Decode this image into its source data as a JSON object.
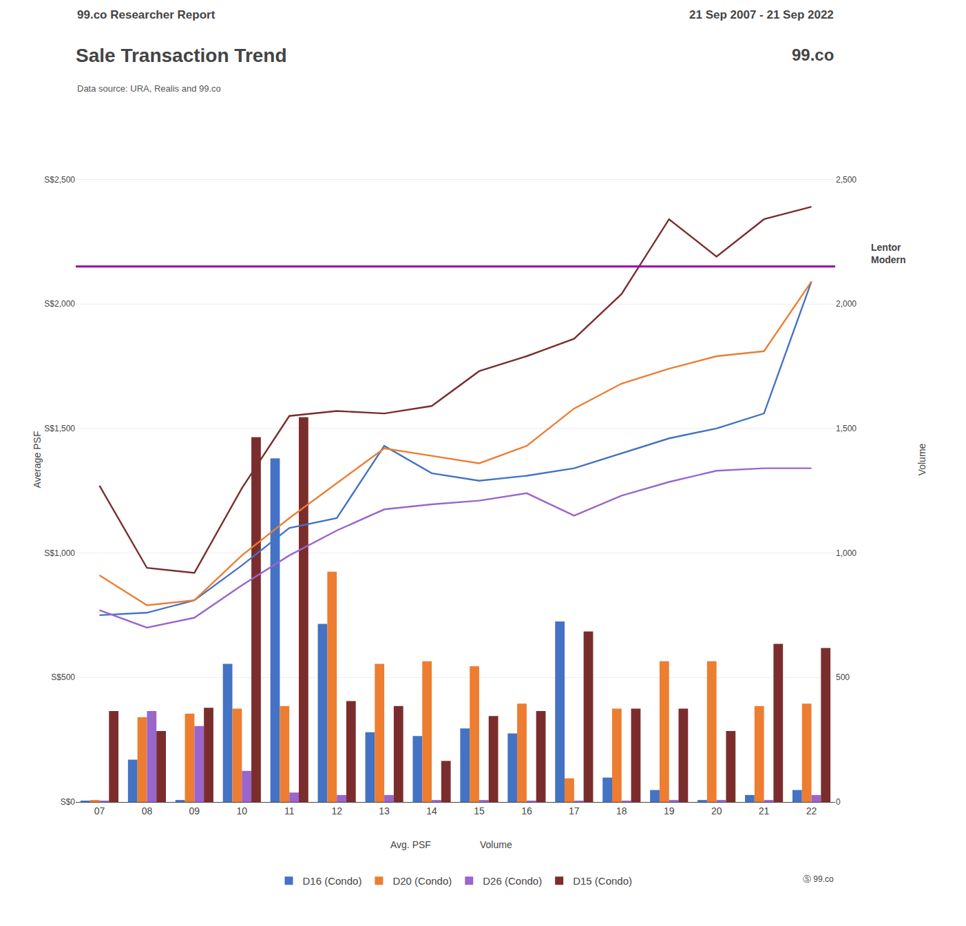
{
  "chart_data": {
    "type": "bar",
    "title": "Sale Transaction Trend",
    "subtitle": "Data source: URA, Realis and 99.co",
    "ylabel": "Average PSF",
    "y2label": "Volume",
    "categories": [
      "07",
      "08",
      "09",
      "10",
      "11",
      "12",
      "13",
      "14",
      "15",
      "16",
      "17",
      "18",
      "19",
      "20",
      "21",
      "22"
    ],
    "series": [
      {
        "name": "D16 (Condo)",
        "type": "bar",
        "axis": "y2",
        "color": "#4472C4",
        "values": [
          3,
          170,
          8,
          555,
          1380,
          715,
          280,
          265,
          295,
          275,
          725,
          98,
          48,
          8,
          28,
          48
        ]
      },
      {
        "name": "D20 (Condo)",
        "type": "bar",
        "axis": "y2",
        "color": "#ED7D31",
        "values": [
          8,
          340,
          355,
          375,
          385,
          925,
          555,
          565,
          545,
          395,
          95,
          375,
          565,
          565,
          385,
          395
        ]
      },
      {
        "name": "D26 (Condo)",
        "type": "bar",
        "axis": "y2",
        "color": "#9966CC",
        "values": [
          3,
          365,
          305,
          125,
          38,
          28,
          28,
          8,
          8,
          3,
          3,
          3,
          8,
          8,
          8,
          28
        ]
      },
      {
        "name": "D15 (Condo)",
        "type": "bar",
        "axis": "y2",
        "color": "#7B2D2D",
        "values": [
          365,
          285,
          378,
          1465,
          1545,
          405,
          385,
          165,
          345,
          365,
          685,
          375,
          375,
          285,
          635,
          618
        ]
      },
      {
        "name": "D16 (Condo)",
        "type": "line",
        "color": "#4472C4",
        "values": [
          750,
          760,
          810,
          950,
          1100,
          1140,
          1430,
          1320,
          1290,
          1310,
          1340,
          1400,
          1460,
          1500,
          1560,
          2090
        ]
      },
      {
        "name": "D20 (Condo)",
        "type": "line",
        "color": "#ED7D31",
        "values": [
          910,
          790,
          810,
          990,
          1140,
          1280,
          1420,
          1390,
          1360,
          1430,
          1580,
          1680,
          1740,
          1790,
          1810,
          2090
        ]
      },
      {
        "name": "D26 (Condo)",
        "type": "line",
        "color": "#9966CC",
        "values": [
          770,
          700,
          740,
          870,
          990,
          1090,
          1175,
          1195,
          1210,
          1240,
          1150,
          1230,
          1285,
          1330,
          1340,
          1340
        ]
      },
      {
        "name": "D15 (Condo)",
        "type": "line",
        "color": "#7B2D2D",
        "values": [
          1270,
          940,
          920,
          1260,
          1550,
          1570,
          1560,
          1590,
          1730,
          1790,
          1860,
          2040,
          2340,
          2190,
          2340,
          2390
        ]
      }
    ],
    "hlines": [
      {
        "y": 2150,
        "label": "Lentor\nModern",
        "color": "#9900AA"
      }
    ],
    "annotations": [
      "99.co Researcher Report",
      "21 Sep 2007 - 21 Sep 2022",
      "99.co",
      "Ⓢ 99.co",
      "Avg. PSF",
      "Volume"
    ],
    "ylim": [
      0,
      2750
    ],
    "yticks": [
      {
        "value": 0,
        "label": "S$0"
      },
      {
        "value": 500,
        "label": "S$500"
      },
      {
        "value": 1000,
        "label": "S$1,000"
      },
      {
        "value": 1500,
        "label": "S$1,500"
      },
      {
        "value": 2000,
        "label": "S$2,000"
      },
      {
        "value": 2500,
        "label": "S$2,500"
      }
    ],
    "y2lim": [
      0,
      2750
    ],
    "y2ticks": [
      0,
      500,
      {
        "value": 1000,
        "label": "1,000"
      },
      {
        "value": 1500,
        "label": "1,500"
      },
      {
        "value": 2000,
        "label": "2,000"
      },
      {
        "value": 2500,
        "label": "2,500"
      }
    ],
    "grid": true,
    "legend": "bottom"
  }
}
